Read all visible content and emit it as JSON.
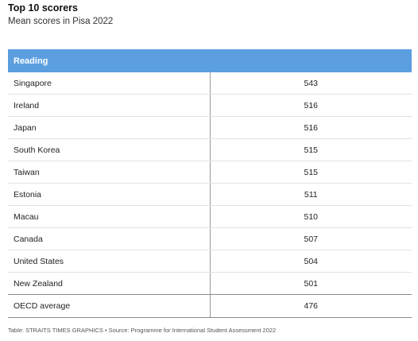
{
  "header": {
    "title": "Top 10 scorers",
    "subtitle": "Mean scores in Pisa 2022"
  },
  "chart_data": {
    "type": "table",
    "columns": [
      "Reading",
      ""
    ],
    "rows": [
      {
        "country": "Singapore",
        "score": 543
      },
      {
        "country": "Ireland",
        "score": 516
      },
      {
        "country": "Japan",
        "score": 516
      },
      {
        "country": "South Korea",
        "score": 515
      },
      {
        "country": "Taiwan",
        "score": 515
      },
      {
        "country": "Estonia",
        "score": 511
      },
      {
        "country": "Macau",
        "score": 510
      },
      {
        "country": "Canada",
        "score": 507
      },
      {
        "country": "United States",
        "score": 504
      },
      {
        "country": "New Zealand",
        "score": 501
      }
    ],
    "average": {
      "country": "OECD average",
      "score": 476
    }
  },
  "footer": {
    "source": "Table: STRAITS TIMES GRAPHICS • Source: Programme for International Student Assessment 2022"
  },
  "colors": {
    "header_bg": "#5b9fe0",
    "header_text": "#ffffff"
  }
}
